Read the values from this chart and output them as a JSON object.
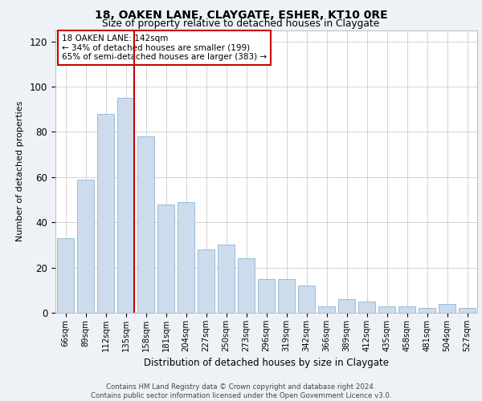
{
  "title1": "18, OAKEN LANE, CLAYGATE, ESHER, KT10 0RE",
  "title2": "Size of property relative to detached houses in Claygate",
  "xlabel": "Distribution of detached houses by size in Claygate",
  "ylabel": "Number of detached properties",
  "categories": [
    "66sqm",
    "89sqm",
    "112sqm",
    "135sqm",
    "158sqm",
    "181sqm",
    "204sqm",
    "227sqm",
    "250sqm",
    "273sqm",
    "296sqm",
    "319sqm",
    "342sqm",
    "366sqm",
    "389sqm",
    "412sqm",
    "435sqm",
    "458sqm",
    "481sqm",
    "504sqm",
    "527sqm"
  ],
  "values": [
    33,
    59,
    88,
    95,
    78,
    48,
    49,
    28,
    30,
    24,
    15,
    15,
    12,
    3,
    6,
    5,
    3,
    3,
    2,
    4,
    2
  ],
  "bar_color": "#ccdcec",
  "bar_edge_color": "#9bbcd4",
  "annotation_text": "18 OAKEN LANE: 142sqm\n← 34% of detached houses are smaller (199)\n65% of semi-detached houses are larger (383) →",
  "vline_color": "#cc0000",
  "box_edge_color": "#cc0000",
  "ylim": [
    0,
    125
  ],
  "yticks": [
    0,
    20,
    40,
    60,
    80,
    100,
    120
  ],
  "footer_line1": "Contains HM Land Registry data © Crown copyright and database right 2024.",
  "footer_line2": "Contains public sector information licensed under the Open Government Licence v3.0.",
  "bg_color": "#eef2f7",
  "plot_bg_color": "#ffffff"
}
